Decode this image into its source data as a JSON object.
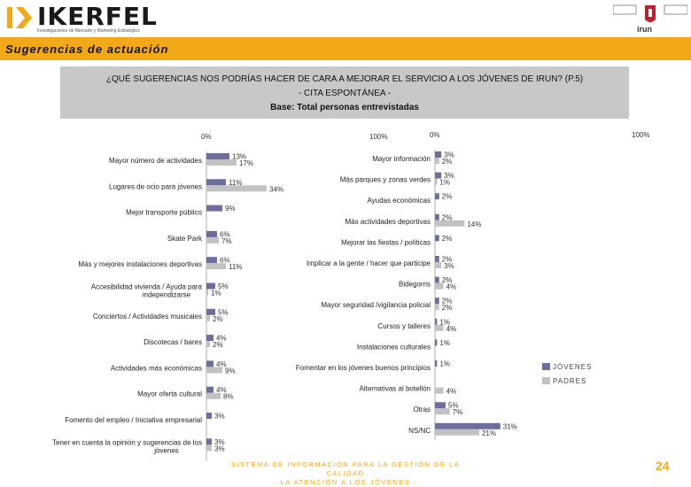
{
  "header": {
    "brand": "IKERFEL",
    "tagline": "Investigaciones de Mercado y Marketing Estratégico",
    "crest_label": "irun"
  },
  "section_title": "Sugerencias de actuación",
  "question": {
    "line1": "¿QUÉ SUGERENCIAS NOS PODRÍAS HACER DE CARA A MEJORAR EL SERVICIO A LOS JÓVENES DE IRUN? (P.5)",
    "line2": "- CITA ESPONTÁNEA -",
    "line3": "Base: Total personas entrevistadas"
  },
  "colors": {
    "jovenes": "#6d6d9e",
    "padres": "#c2c2c2",
    "accent": "#f2a918"
  },
  "legend": {
    "jovenes": "JÓVENES",
    "padres": "PADRES"
  },
  "footer": {
    "line1": "SISTEMA DE INFORMACIÓN PARA LA GESTIÓN DE LA CALIDAD",
    "line2": "- LA ATENCIÓN A LOS JÓVENES -"
  },
  "page_number": "24",
  "chart_data": [
    {
      "type": "bar",
      "orientation": "horizontal",
      "axis_start_label": "0%",
      "axis_end_label": "100%",
      "xlim": [
        0,
        100
      ],
      "series_names": [
        "JÓVENES",
        "PADRES"
      ],
      "rows": [
        {
          "label": [
            "Mayor número de actividades"
          ],
          "jovenes": 13,
          "padres": 17
        },
        {
          "label": [
            "Lugares de ocio para jóvenes"
          ],
          "jovenes": 11,
          "padres": 34
        },
        {
          "label": [
            "Mejor transporte público"
          ],
          "jovenes": 9,
          "padres": null
        },
        {
          "label": [
            "Skate Park"
          ],
          "jovenes": 6,
          "padres": 7
        },
        {
          "label": [
            "Más y mejores instalaciones deportivas"
          ],
          "jovenes": 6,
          "padres": 11
        },
        {
          "label": [
            "Accesibilidad vivienda / Ayuda para",
            "independizarse"
          ],
          "jovenes": 5,
          "padres": 1
        },
        {
          "label": [
            "Conciertos / Actividades musicales"
          ],
          "jovenes": 5,
          "padres": 2
        },
        {
          "label": [
            "Discotecas / bares"
          ],
          "jovenes": 4,
          "padres": 2
        },
        {
          "label": [
            "Actividades más económicas"
          ],
          "jovenes": 4,
          "padres": 9
        },
        {
          "label": [
            "Mayor oferta cultural"
          ],
          "jovenes": 4,
          "padres": 8
        },
        {
          "label": [
            "Fomento del empleo / Iniciativa empresarial"
          ],
          "jovenes": 3,
          "padres": null
        },
        {
          "label": [
            "Tener en cuenta la opinión y sugerencias de los",
            "jóvenes"
          ],
          "jovenes": 3,
          "padres": 3
        }
      ]
    },
    {
      "type": "bar",
      "orientation": "horizontal",
      "axis_start_label": "0%",
      "axis_end_label": "100%",
      "xlim": [
        0,
        100
      ],
      "series_names": [
        "JÓVENES",
        "PADRES"
      ],
      "rows": [
        {
          "label": [
            "Mayor información"
          ],
          "jovenes": 3,
          "padres": 2
        },
        {
          "label": [
            "Más parques y zonas verdes"
          ],
          "jovenes": 3,
          "padres": 1
        },
        {
          "label": [
            "Ayudas económicas"
          ],
          "jovenes": 2,
          "padres": null
        },
        {
          "label": [
            "Más actividades deportivas"
          ],
          "jovenes": 2,
          "padres": 14
        },
        {
          "label": [
            "Mejorar las fiestas / políticas"
          ],
          "jovenes": 2,
          "padres": null
        },
        {
          "label": [
            "Implicar a la gente / hacer que participe"
          ],
          "jovenes": 2,
          "padres": 3
        },
        {
          "label": [
            "Bidegorris"
          ],
          "jovenes": 2,
          "padres": 4
        },
        {
          "label": [
            "Mayor seguridad /vigilancia policial"
          ],
          "jovenes": 2,
          "padres": 2
        },
        {
          "label": [
            "Cursos y talleres"
          ],
          "jovenes": 1,
          "padres": 4
        },
        {
          "label": [
            "Instalaciones culturales"
          ],
          "jovenes": 1,
          "padres": null
        },
        {
          "label": [
            "Fomentar en los jóvenes buenos principios"
          ],
          "jovenes": 1,
          "padres": null
        },
        {
          "label": [
            "Alternativas al botellón"
          ],
          "jovenes": null,
          "padres": 4
        },
        {
          "label": [
            "Otras"
          ],
          "jovenes": 5,
          "padres": 7
        },
        {
          "label": [
            "NS/NC"
          ],
          "jovenes": 31,
          "padres": 21
        }
      ]
    }
  ]
}
